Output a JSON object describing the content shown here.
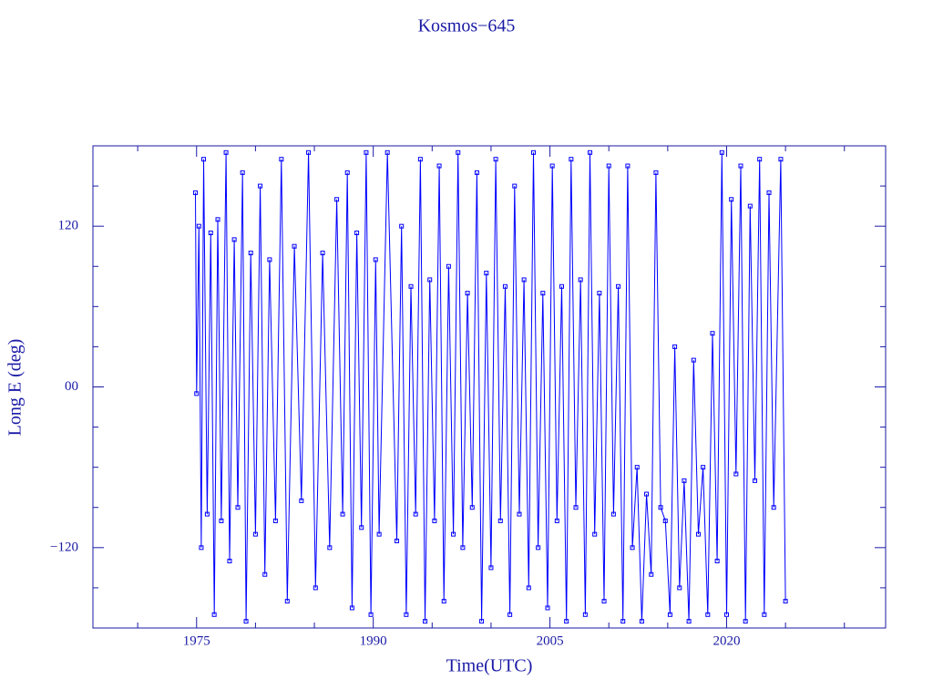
{
  "chart_data": {
    "type": "line",
    "title": "Kosmos−645",
    "x_label": "Time(UTC)",
    "y_label": "Long E (deg)",
    "xlim": [
      1966.2,
      2033.5
    ],
    "xticks": [
      1975,
      1990,
      2005,
      2020
    ],
    "x_minor_ticks": [
      1970,
      1980,
      1985,
      1995,
      2000,
      2010,
      2015,
      2025,
      2030
    ],
    "ylim": [
      -180,
      180
    ],
    "yticks": [
      {
        "value": -120,
        "label": "−120"
      },
      {
        "value": 0,
        "label": "00"
      },
      120
    ],
    "y_minor_ticks": [
      -150,
      -90,
      -60,
      -30,
      30,
      60,
      90,
      150
    ],
    "markers": true,
    "x": [
      1974.9,
      1975.0,
      1975.2,
      1975.4,
      1975.6,
      1975.9,
      1976.2,
      1976.5,
      1976.8,
      1977.1,
      1977.5,
      1977.8,
      1978.2,
      1978.5,
      1978.9,
      1979.2,
      1979.6,
      1980.0,
      1980.4,
      1980.8,
      1981.2,
      1981.7,
      1982.2,
      1982.7,
      1983.3,
      1983.9,
      1984.5,
      1985.1,
      1985.7,
      1986.3,
      1986.9,
      1987.4,
      1987.8,
      1988.2,
      1988.6,
      1989.0,
      1989.4,
      1989.8,
      1990.2,
      1990.5,
      1991.2,
      1992.0,
      1992.4,
      1992.8,
      1993.2,
      1993.6,
      1994.0,
      1994.4,
      1994.8,
      1995.2,
      1995.6,
      1996.0,
      1996.4,
      1996.8,
      1997.2,
      1997.6,
      1998.0,
      1998.4,
      1998.8,
      1999.2,
      1999.6,
      2000.0,
      2000.4,
      2000.8,
      2001.2,
      2001.6,
      2002.0,
      2002.4,
      2002.8,
      2003.2,
      2003.6,
      2004.0,
      2004.4,
      2004.8,
      2005.2,
      2005.6,
      2006.0,
      2006.4,
      2006.8,
      2007.2,
      2007.6,
      2008.0,
      2008.4,
      2008.8,
      2009.2,
      2009.6,
      2010.0,
      2010.4,
      2010.8,
      2011.2,
      2011.6,
      2012.0,
      2012.4,
      2012.8,
      2013.2,
      2013.6,
      2014.0,
      2014.4,
      2014.8,
      2015.2,
      2015.6,
      2016.0,
      2016.4,
      2016.8,
      2017.2,
      2017.6,
      2018.0,
      2018.4,
      2018.8,
      2019.2,
      2019.6,
      2020.0,
      2020.4,
      2020.8,
      2021.2,
      2021.6,
      2022.0,
      2022.4,
      2022.8,
      2023.2,
      2023.6,
      2024.0,
      2024.6,
      2025.0
    ],
    "series": [
      {
        "color": "#0000ff",
        "values": [
          145,
          -5,
          120,
          -120,
          170,
          -95,
          115,
          -170,
          125,
          -100,
          175,
          -130,
          110,
          -90,
          160,
          -175,
          100,
          -110,
          150,
          -140,
          95,
          -100,
          170,
          -160,
          105,
          -85,
          175,
          -150,
          100,
          -120,
          140,
          -95,
          160,
          -165,
          115,
          -105,
          175,
          -170,
          95,
          -110,
          175,
          -115,
          120,
          -170,
          75,
          -95,
          170,
          -175,
          80,
          -100,
          165,
          -160,
          90,
          -110,
          175,
          -120,
          70,
          -90,
          160,
          -175,
          85,
          -135,
          170,
          -100,
          75,
          -170,
          150,
          -95,
          80,
          -150,
          175,
          -120,
          70,
          -165,
          165,
          -100,
          75,
          -175,
          170,
          -90,
          80,
          -170,
          175,
          -110,
          70,
          -160,
          165,
          -95,
          75,
          -175,
          165,
          -120,
          -60,
          -175,
          -80,
          -140,
          160,
          -90,
          -100,
          -170,
          30,
          -150,
          -70,
          -175,
          20,
          -110,
          -60,
          -170,
          40,
          -130,
          175,
          -170,
          140,
          -65,
          165,
          -175,
          135,
          -70,
          170,
          -170,
          145,
          -90,
          170,
          -160
        ]
      }
    ]
  }
}
